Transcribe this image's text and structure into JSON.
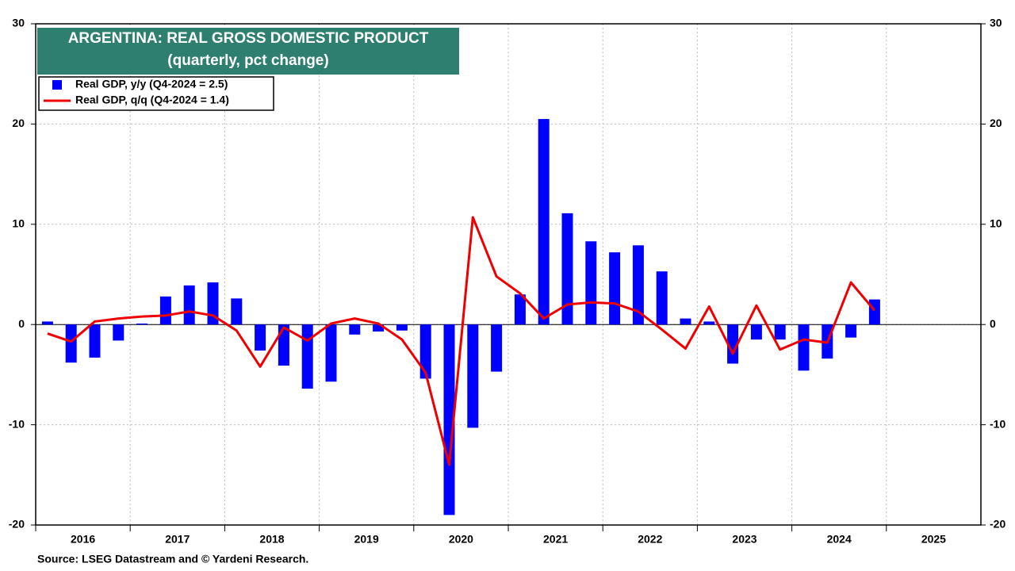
{
  "chart_data": {
    "type": "bar-line",
    "title": "ARGENTINA: REAL GROSS DOMESTIC PRODUCT",
    "subtitle": "(quarterly, pct change)",
    "source": "Source: LSEG Datastream and © Yardeni Research.",
    "x": [
      2016.125,
      2016.375,
      2016.625,
      2016.875,
      2017.125,
      2017.375,
      2017.625,
      2017.875,
      2018.125,
      2018.375,
      2018.625,
      2018.875,
      2019.125,
      2019.375,
      2019.625,
      2019.875,
      2020.125,
      2020.375,
      2020.625,
      2020.875,
      2021.125,
      2021.375,
      2021.625,
      2021.875,
      2022.125,
      2022.375,
      2022.625,
      2022.875,
      2023.125,
      2023.375,
      2023.625,
      2023.875,
      2024.125,
      2024.375,
      2024.625,
      2024.875
    ],
    "xlim": [
      2016,
      2026
    ],
    "xticks": [
      2016,
      2017,
      2018,
      2019,
      2020,
      2021,
      2022,
      2023,
      2024,
      2025
    ],
    "ylim": [
      -20,
      30
    ],
    "yticks": [
      -20,
      -10,
      0,
      10,
      20,
      30
    ],
    "grid": true,
    "legend": "upper left",
    "series": [
      {
        "name": "Real GDP, y/y (Q4-2024 = 2.5)",
        "type": "bar",
        "color": "#0000ff",
        "values": [
          0.3,
          -3.8,
          -3.3,
          -1.6,
          0.1,
          2.8,
          3.9,
          4.2,
          2.6,
          -2.6,
          -4.1,
          -6.4,
          -5.7,
          -1.0,
          -0.7,
          -0.6,
          -5.4,
          -19.0,
          -10.3,
          -4.7,
          3.0,
          20.5,
          11.1,
          8.3,
          7.2,
          7.9,
          5.3,
          0.6,
          0.3,
          -3.9,
          -1.5,
          -1.5,
          -4.6,
          -3.4,
          -1.3,
          2.5
        ]
      },
      {
        "name": "Real GDP, q/q (Q4-2024 = 1.4)",
        "type": "line",
        "color": "#ee0000",
        "values": [
          -0.9,
          -1.7,
          0.3,
          0.6,
          0.8,
          0.9,
          1.3,
          0.9,
          -0.6,
          -4.2,
          -0.3,
          -1.6,
          0.1,
          0.6,
          0.1,
          -1.5,
          -4.8,
          -14.0,
          10.7,
          4.8,
          3.1,
          0.6,
          2.0,
          2.2,
          2.1,
          1.3,
          -0.5,
          -2.4,
          1.8,
          -2.9,
          1.9,
          -2.5,
          -1.5,
          -1.8,
          4.2,
          1.4
        ]
      }
    ]
  }
}
